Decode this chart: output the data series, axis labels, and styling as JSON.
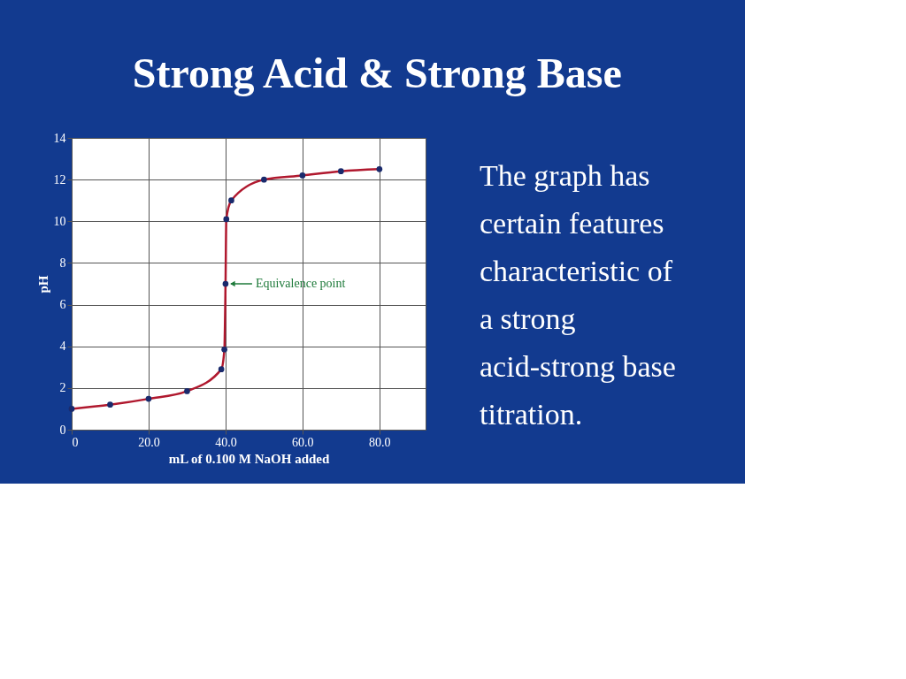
{
  "chart_data": {
    "type": "line",
    "title": "Strong Acid & Strong Base",
    "xlabel": "mL of 0.100 M NaOH added",
    "ylabel": "pH",
    "xlim": [
      0,
      92
    ],
    "xticks": [
      0,
      {
        "value": 20,
        "label": "20.0"
      },
      {
        "value": 40,
        "label": "40.0"
      },
      {
        "value": 60,
        "label": "60.0"
      },
      {
        "value": 80,
        "label": "80.0"
      }
    ],
    "ylim": [
      0,
      14
    ],
    "yticks": [
      0,
      2,
      4,
      6,
      8,
      10,
      12,
      14
    ],
    "grid": true,
    "line_style": "solid",
    "x": [
      0,
      10,
      20,
      30,
      38.9,
      39.7,
      40,
      40.2,
      41.5,
      50,
      60,
      70,
      80
    ],
    "series": [
      {
        "color": "#b0182e",
        "marker": "none",
        "values": [
          1.0,
          1.2,
          1.48,
          1.85,
          2.9,
          3.85,
          7.0,
          10.1,
          11.0,
          12.0,
          12.2,
          12.4,
          12.5
        ]
      },
      {
        "type": "scatter",
        "marker": "circle",
        "color": "#1a2a6c",
        "values": [
          1.0,
          1.2,
          1.48,
          1.85,
          2.9,
          3.85,
          7.0,
          10.1,
          11.0,
          12.0,
          12.2,
          12.4,
          12.5
        ]
      }
    ],
    "annotations": [
      {
        "text": "Equivalence point",
        "x": 40,
        "y": 7
      },
      "The graph has certain features characteristic of a strong acid-strong base titration."
    ]
  }
}
